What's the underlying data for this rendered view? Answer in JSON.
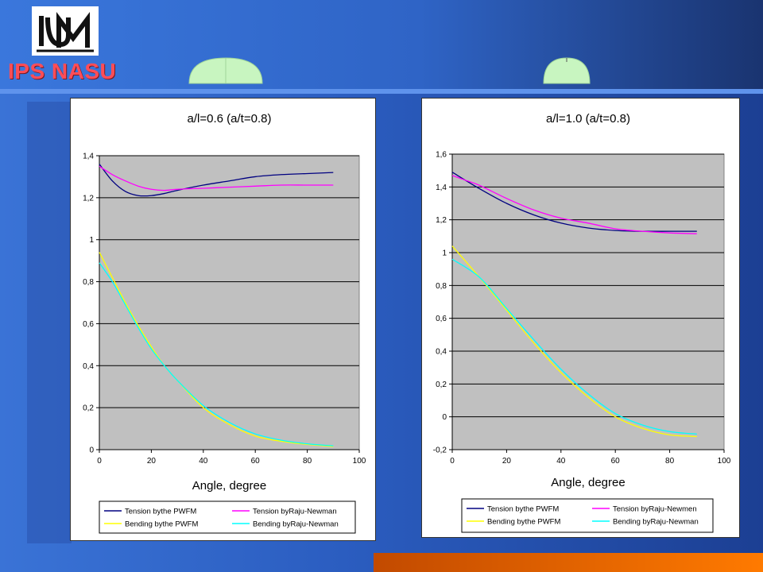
{
  "header": {
    "org_name": "IPS NASU",
    "logo_icon": "ipm-logo-icon"
  },
  "decor": {
    "left_shape": "half-ellipse-crack-icon",
    "right_shape": "half-circle-crack-icon",
    "shape_color": "#c8f5c0"
  },
  "colors": {
    "tension_pwfm": "#000080",
    "tension_raju": "#ff00ff",
    "bending_pwfm": "#ffff00",
    "bending_raju": "#00ffff",
    "plot_bg": "#c0c0c0"
  },
  "chart_data": [
    {
      "type": "line",
      "title": "a/l=0.6 (a/t=0.8)",
      "xlabel": "Angle, degree",
      "ylabel": "",
      "xlim": [
        0,
        100
      ],
      "ylim": [
        0,
        1.4
      ],
      "xticks": [
        0,
        20,
        40,
        60,
        80,
        100
      ],
      "xtick_labels": [
        "0",
        "20",
        "40",
        "60",
        "80",
        "100"
      ],
      "yticks": [
        0,
        0.2,
        0.4,
        0.6,
        0.8,
        1.0,
        1.2,
        1.4
      ],
      "ytick_labels": [
        "0",
        "0,2",
        "0,4",
        "0,6",
        "0,8",
        "1",
        "1,2",
        "1,4"
      ],
      "grid": true,
      "legend_position": "bottom",
      "series": [
        {
          "name": "Tension bythe PWFM",
          "color": "#000080",
          "x": [
            0,
            5,
            10,
            15,
            20,
            25,
            30,
            40,
            50,
            60,
            70,
            80,
            90
          ],
          "y": [
            1.36,
            1.28,
            1.23,
            1.21,
            1.21,
            1.22,
            1.235,
            1.26,
            1.28,
            1.3,
            1.31,
            1.315,
            1.32
          ]
        },
        {
          "name": "Tension byRaju-Newman",
          "color": "#ff00ff",
          "x": [
            0,
            5,
            10,
            15,
            20,
            25,
            30,
            40,
            50,
            60,
            70,
            80,
            90
          ],
          "y": [
            1.35,
            1.31,
            1.28,
            1.255,
            1.24,
            1.235,
            1.24,
            1.245,
            1.25,
            1.255,
            1.26,
            1.26,
            1.26
          ]
        },
        {
          "name": "Bending bythe PWFM",
          "color": "#ffff00",
          "x": [
            0,
            5,
            10,
            15,
            20,
            25,
            30,
            40,
            50,
            60,
            70,
            80,
            90
          ],
          "y": [
            0.94,
            0.82,
            0.7,
            0.59,
            0.49,
            0.4,
            0.33,
            0.2,
            0.12,
            0.065,
            0.04,
            0.025,
            0.015
          ]
        },
        {
          "name": "Bending byRaju-Newman",
          "color": "#00ffff",
          "x": [
            0,
            5,
            10,
            15,
            20,
            25,
            30,
            40,
            50,
            60,
            70,
            80,
            90
          ],
          "y": [
            0.89,
            0.8,
            0.69,
            0.58,
            0.48,
            0.4,
            0.33,
            0.21,
            0.13,
            0.075,
            0.045,
            0.028,
            0.018
          ]
        }
      ]
    },
    {
      "type": "line",
      "title": "a/l=1.0 (a/t=0.8)",
      "xlabel": "Angle, degree",
      "ylabel": "",
      "xlim": [
        0,
        100
      ],
      "ylim": [
        -0.2,
        1.6
      ],
      "xticks": [
        0,
        20,
        40,
        60,
        80,
        100
      ],
      "xtick_labels": [
        "0",
        "20",
        "40",
        "60",
        "80",
        "100"
      ],
      "yticks": [
        -0.2,
        0,
        0.2,
        0.4,
        0.6,
        0.8,
        1.0,
        1.2,
        1.4,
        1.6
      ],
      "ytick_labels": [
        "-0,2",
        "0",
        "0,2",
        "0,4",
        "0,6",
        "0,8",
        "1",
        "1,2",
        "1,4",
        "1,6"
      ],
      "grid": true,
      "legend_position": "bottom",
      "series": [
        {
          "name": "Tension bythe PWFM",
          "color": "#000080",
          "x": [
            0,
            10,
            20,
            30,
            40,
            50,
            60,
            70,
            80,
            90
          ],
          "y": [
            1.49,
            1.39,
            1.3,
            1.23,
            1.18,
            1.15,
            1.135,
            1.13,
            1.13,
            1.13
          ]
        },
        {
          "name": "Tension byRaju-Newmen",
          "color": "#ff00ff",
          "x": [
            0,
            5,
            10,
            20,
            30,
            40,
            50,
            60,
            70,
            80,
            90
          ],
          "y": [
            1.47,
            1.44,
            1.41,
            1.33,
            1.26,
            1.21,
            1.18,
            1.145,
            1.13,
            1.12,
            1.115
          ]
        },
        {
          "name": "Bending bythe PWFM",
          "color": "#ffff00",
          "x": [
            0,
            10,
            20,
            30,
            40,
            50,
            60,
            70,
            80,
            90
          ],
          "y": [
            1.04,
            0.85,
            0.65,
            0.45,
            0.27,
            0.12,
            0.0,
            -0.07,
            -0.11,
            -0.12
          ]
        },
        {
          "name": "Bending byRaju-Newman",
          "color": "#00ffff",
          "x": [
            0,
            10,
            20,
            30,
            40,
            50,
            60,
            70,
            80,
            90
          ],
          "y": [
            0.96,
            0.85,
            0.66,
            0.47,
            0.29,
            0.14,
            0.02,
            -0.05,
            -0.09,
            -0.105
          ]
        }
      ]
    }
  ]
}
